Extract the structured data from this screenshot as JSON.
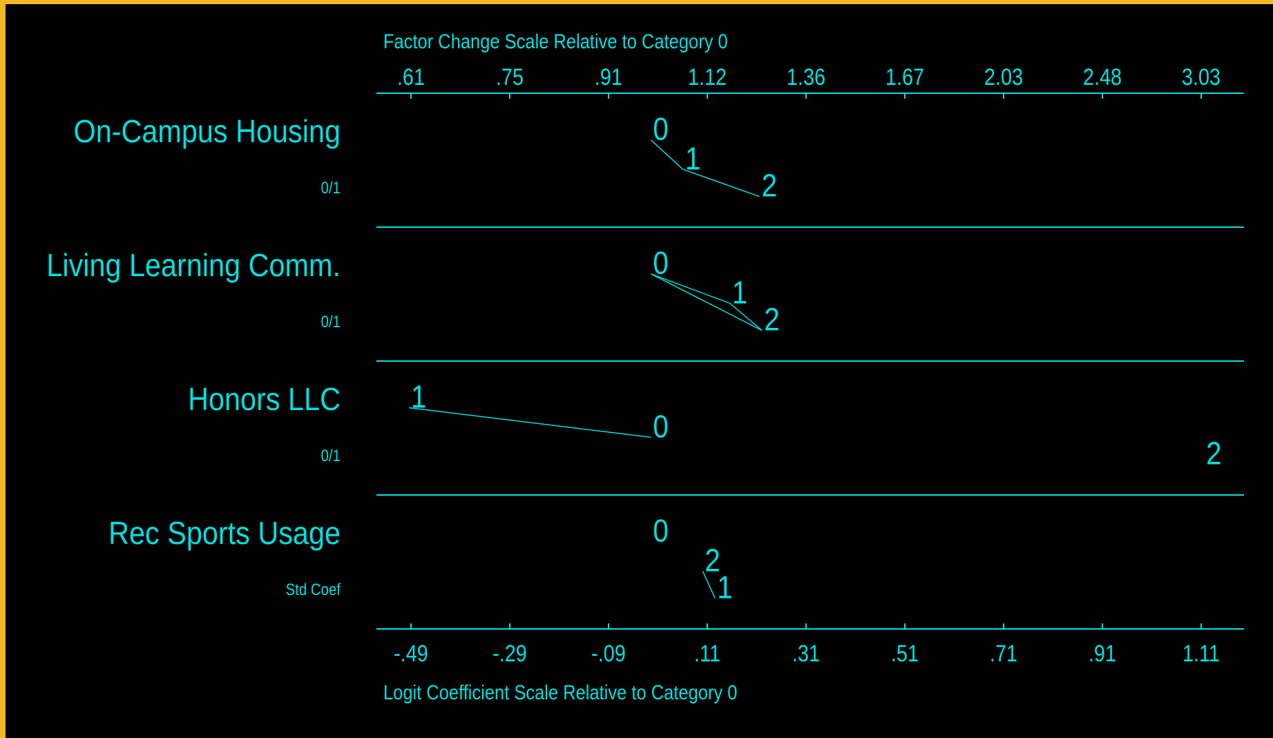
{
  "chart_data": {
    "type": "odds-ratio-plot",
    "top_axis": {
      "title": "Factor Change Scale Relative to Category 0",
      "ticks": [
        {
          "logit": -0.49,
          "label": ".61"
        },
        {
          "logit": -0.29,
          "label": ".75"
        },
        {
          "logit": -0.09,
          "label": ".91"
        },
        {
          "logit": 0.11,
          "label": "1.12"
        },
        {
          "logit": 0.31,
          "label": "1.36"
        },
        {
          "logit": 0.51,
          "label": "1.67"
        },
        {
          "logit": 0.71,
          "label": "2.03"
        },
        {
          "logit": 0.91,
          "label": "2.48"
        },
        {
          "logit": 1.11,
          "label": "3.03"
        }
      ]
    },
    "bottom_axis": {
      "title": "Logit Coefficient Scale Relative to Category 0",
      "ticks": [
        {
          "logit": -0.49,
          "label": "-.49"
        },
        {
          "logit": -0.29,
          "label": "-.29"
        },
        {
          "logit": -0.09,
          "label": "-.09"
        },
        {
          "logit": 0.11,
          "label": ".11"
        },
        {
          "logit": 0.31,
          "label": ".31"
        },
        {
          "logit": 0.51,
          "label": ".51"
        },
        {
          "logit": 0.71,
          "label": ".71"
        },
        {
          "logit": 0.91,
          "label": ".91"
        },
        {
          "logit": 1.11,
          "label": "1.11"
        }
      ]
    },
    "xlim": [
      -0.5,
      1.17
    ],
    "variables": [
      {
        "name": "On-Campus Housing",
        "scale": "0/1",
        "points": [
          {
            "cat": "0",
            "x": 0.0,
            "level": 0.12
          },
          {
            "cat": "1",
            "x": 0.065,
            "level": 0.38
          },
          {
            "cat": "2",
            "x": 0.22,
            "level": 0.62
          }
        ],
        "connections": [
          [
            "0",
            "1"
          ],
          [
            "1",
            "2"
          ]
        ]
      },
      {
        "name": "Living Learning Comm.",
        "scale": "0/1",
        "points": [
          {
            "cat": "0",
            "x": 0.0,
            "level": 0.12
          },
          {
            "cat": "1",
            "x": 0.16,
            "level": 0.38
          },
          {
            "cat": "2",
            "x": 0.225,
            "level": 0.62
          }
        ],
        "connections": [
          [
            "0",
            "1"
          ],
          [
            "0",
            "2"
          ],
          [
            "1",
            "2"
          ]
        ]
      },
      {
        "name": "Honors LLC",
        "scale": "0/1",
        "points": [
          {
            "cat": "1",
            "x": -0.49,
            "level": 0.12
          },
          {
            "cat": "0",
            "x": 0.0,
            "level": 0.38
          },
          {
            "cat": "2",
            "x": 1.12,
            "level": 0.62
          }
        ],
        "connections": [
          [
            "1",
            "0"
          ]
        ]
      },
      {
        "name": "Rec Sports Usage",
        "scale": "Std Coef",
        "points": [
          {
            "cat": "0",
            "x": 0.0,
            "level": 0.12
          },
          {
            "cat": "2",
            "x": 0.105,
            "level": 0.38
          },
          {
            "cat": "1",
            "x": 0.13,
            "level": 0.62
          }
        ],
        "connections": [
          [
            "2",
            "1"
          ]
        ]
      }
    ]
  },
  "colors": {
    "foreground": "#00e0e0",
    "background": "#000000",
    "border": "#f2b824"
  }
}
